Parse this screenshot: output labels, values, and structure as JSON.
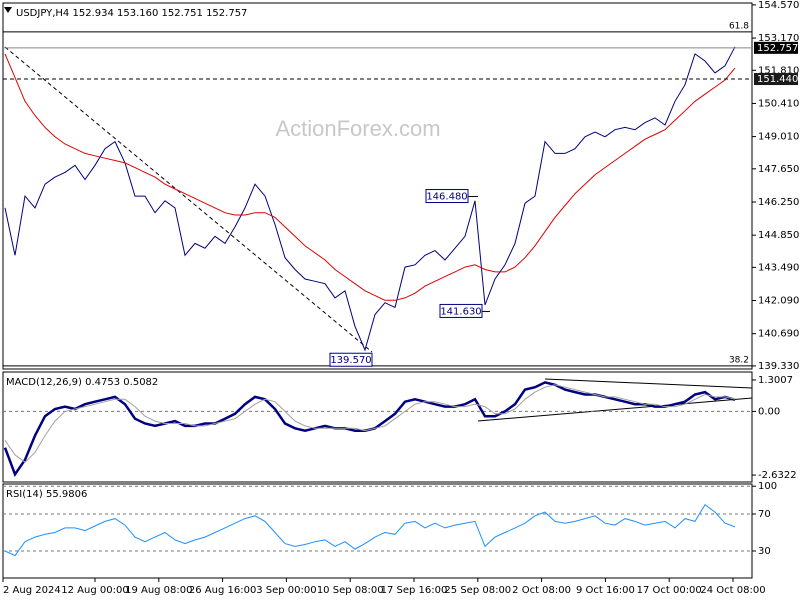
{
  "chart_data": [
    {
      "type": "line",
      "title": "USDJPY,H4  152.934 153.160 152.751 152.757",
      "ylim": [
        139.2,
        154.65
      ],
      "yticks": [
        {
          "value": 154.57,
          "label": "154.570"
        },
        {
          "value": 153.17,
          "label": "153.170"
        },
        {
          "value": 151.81,
          "label": "151.810"
        },
        {
          "value": 150.41,
          "label": "150.410"
        },
        {
          "value": 149.01,
          "label": "149.010"
        },
        {
          "value": 147.65,
          "label": "147.650"
        },
        {
          "value": 146.25,
          "label": "146.250"
        },
        {
          "value": 144.85,
          "label": "144.850"
        },
        {
          "value": 143.49,
          "label": "143.490"
        },
        {
          "value": 142.09,
          "label": "142.090"
        },
        {
          "value": 140.69,
          "label": "140.690"
        },
        {
          "value": 139.33,
          "label": "139.330"
        }
      ],
      "series": [
        {
          "color": "#000080",
          "values": [
            146.0,
            144.0,
            146.5,
            146.0,
            147.0,
            147.3,
            147.5,
            147.8,
            147.2,
            147.8,
            148.5,
            148.8,
            147.9,
            146.5,
            146.5,
            145.8,
            146.3,
            146.0,
            144.0,
            144.5,
            144.3,
            144.8,
            144.5,
            145.2,
            146.0,
            147.0,
            146.5,
            145.3,
            143.9,
            143.4,
            143.0,
            142.9,
            142.8,
            142.2,
            142.5,
            141.0,
            140.0,
            141.5,
            142.0,
            141.8,
            143.5,
            143.6,
            144.0,
            144.2,
            143.8,
            144.3,
            144.8,
            146.3,
            141.9,
            143.0,
            143.6,
            144.5,
            146.2,
            146.5,
            148.8,
            148.3,
            148.3,
            148.5,
            149.0,
            149.2,
            149.0,
            149.3,
            149.4,
            149.3,
            149.6,
            149.8,
            149.5,
            150.5,
            151.2,
            152.5,
            152.2,
            151.7,
            152.0,
            152.8
          ]
        },
        {
          "color": "#e00000",
          "values": [
            152.5,
            151.5,
            150.5,
            149.9,
            149.4,
            149.0,
            148.7,
            148.5,
            148.3,
            148.2,
            148.1,
            148.0,
            147.9,
            147.7,
            147.5,
            147.3,
            147.0,
            146.8,
            146.6,
            146.4,
            146.2,
            146.0,
            145.8,
            145.7,
            145.7,
            145.8,
            145.8,
            145.6,
            145.2,
            144.8,
            144.4,
            144.1,
            143.8,
            143.4,
            143.1,
            142.8,
            142.5,
            142.3,
            142.1,
            142.1,
            142.2,
            142.4,
            142.7,
            142.9,
            143.1,
            143.3,
            143.5,
            143.6,
            143.4,
            143.3,
            143.3,
            143.5,
            143.9,
            144.4,
            145.0,
            145.6,
            146.1,
            146.6,
            147.0,
            147.4,
            147.7,
            148.0,
            148.3,
            148.6,
            148.9,
            149.1,
            149.3,
            149.7,
            150.1,
            150.5,
            150.8,
            151.1,
            151.4,
            151.9
          ]
        }
      ],
      "annotations": [
        {
          "label": "146.480",
          "value": 146.48
        },
        {
          "label": "141.630",
          "value": 141.63
        },
        {
          "label": "139.570",
          "value": 139.57
        }
      ],
      "levels": [
        {
          "label": "61.8",
          "value": 153.43
        },
        {
          "label": "38.2",
          "value": 139.33
        }
      ],
      "price_lines": [
        {
          "value": 152.757,
          "label": "152.757"
        },
        {
          "value": 151.44,
          "label": "151.440"
        }
      ]
    },
    {
      "type": "line",
      "title": "MACD(12,26,9) 0.4753 0.5082",
      "ylim": [
        -2.92,
        1.63
      ],
      "yticks": [
        1.3007,
        {
          "value": 0,
          "label": "0.00"
        },
        -2.6322
      ],
      "zero_line": true,
      "series": [
        {
          "color": "#000080",
          "values": [
            -1.5,
            -2.6,
            -2.0,
            -1.0,
            -0.2,
            0.1,
            0.2,
            0.1,
            0.3,
            0.4,
            0.5,
            0.6,
            0.3,
            -0.3,
            -0.5,
            -0.6,
            -0.5,
            -0.4,
            -0.6,
            -0.6,
            -0.5,
            -0.5,
            -0.3,
            -0.1,
            0.3,
            0.6,
            0.5,
            0.1,
            -0.5,
            -0.7,
            -0.8,
            -0.7,
            -0.6,
            -0.7,
            -0.7,
            -0.8,
            -0.8,
            -0.7,
            -0.4,
            -0.1,
            0.4,
            0.5,
            0.4,
            0.3,
            0.2,
            0.2,
            0.3,
            0.5,
            -0.2,
            -0.2,
            0.0,
            0.3,
            0.9,
            1.0,
            1.2,
            1.1,
            0.9,
            0.8,
            0.7,
            0.7,
            0.6,
            0.5,
            0.4,
            0.3,
            0.3,
            0.2,
            0.2,
            0.3,
            0.4,
            0.7,
            0.8,
            0.5,
            0.6,
            0.48
          ]
        },
        {
          "color": "#a0a0a0",
          "values": [
            -1.2,
            -1.8,
            -2.1,
            -1.7,
            -1.0,
            -0.4,
            0.0,
            0.1,
            0.2,
            0.3,
            0.4,
            0.5,
            0.5,
            0.2,
            -0.2,
            -0.4,
            -0.5,
            -0.5,
            -0.5,
            -0.6,
            -0.6,
            -0.5,
            -0.4,
            -0.3,
            0.0,
            0.3,
            0.5,
            0.4,
            0.0,
            -0.4,
            -0.6,
            -0.7,
            -0.7,
            -0.7,
            -0.7,
            -0.7,
            -0.8,
            -0.7,
            -0.6,
            -0.3,
            0.0,
            0.3,
            0.4,
            0.4,
            0.3,
            0.2,
            0.2,
            0.3,
            0.2,
            -0.1,
            -0.1,
            0.1,
            0.5,
            0.8,
            1.0,
            1.1,
            1.0,
            0.9,
            0.8,
            0.7,
            0.6,
            0.6,
            0.5,
            0.4,
            0.3,
            0.3,
            0.2,
            0.2,
            0.3,
            0.5,
            0.7,
            0.6,
            0.6,
            0.51
          ]
        }
      ]
    },
    {
      "type": "line",
      "title": "RSI(14) 55.9806",
      "ylim": [
        0.8,
        102.4
      ],
      "yticks": [
        100,
        70,
        30
      ],
      "grid": true,
      "series": [
        {
          "color": "#1e90ff",
          "values": [
            30,
            25,
            40,
            45,
            48,
            50,
            55,
            55,
            52,
            57,
            62,
            65,
            58,
            45,
            40,
            45,
            50,
            42,
            38,
            42,
            45,
            50,
            55,
            60,
            65,
            68,
            62,
            50,
            38,
            35,
            37,
            40,
            42,
            35,
            40,
            32,
            38,
            45,
            50,
            48,
            60,
            62,
            55,
            60,
            55,
            58,
            60,
            62,
            35,
            45,
            50,
            55,
            60,
            68,
            72,
            62,
            60,
            62,
            65,
            68,
            60,
            58,
            65,
            62,
            58,
            60,
            62,
            55,
            65,
            62,
            80,
            72,
            60,
            56
          ]
        }
      ]
    }
  ],
  "x_labels": [
    "2 Aug 2024",
    "12 Aug 00:00",
    "19 Aug 08:00",
    "26 Aug 16:00",
    "3 Sep 00:00",
    "10 Sep 08:00",
    "17 Sep 16:00",
    "25 Sep 08:00",
    "2 Oct 08:00",
    "9 Oct 16:00",
    "17 Oct 00:00",
    "24 Oct 08:00"
  ],
  "watermark": "ActionForex.com"
}
